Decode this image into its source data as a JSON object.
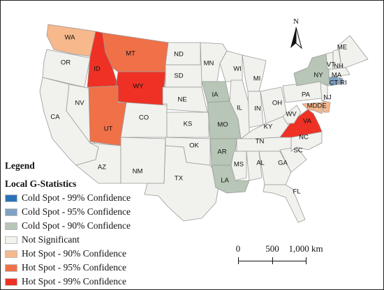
{
  "legend": {
    "title": "Legend",
    "subtitle": "Local G-Statistics",
    "items": [
      {
        "key": "cold99",
        "label": "Cold Spot - 99% Confidence",
        "color": "#2b73b8"
      },
      {
        "key": "cold95",
        "label": "Cold Spot - 95% Confidence",
        "color": "#7ea1c4"
      },
      {
        "key": "cold90",
        "label": "Cold Spot - 90% Confidence",
        "color": "#b7c6b6"
      },
      {
        "key": "ns",
        "label": "Not Significant",
        "color": "#f1f2ed"
      },
      {
        "key": "hot90",
        "label": "Hot Spot - 90% Confidence",
        "color": "#f7b88c"
      },
      {
        "key": "hot95",
        "label": "Hot Spot - 95% Confidence",
        "color": "#f07048"
      },
      {
        "key": "hot99",
        "label": "Hot Spot - 99% Confidence",
        "color": "#ee3124"
      }
    ]
  },
  "scale_bar": {
    "labels": [
      "0",
      "500",
      "1,000 km"
    ]
  },
  "north_arrow": {
    "letter": "N",
    "icon": "north-arrow-icon"
  },
  "states": [
    {
      "abbr": "WA",
      "class": "hot90"
    },
    {
      "abbr": "OR",
      "class": "ns"
    },
    {
      "abbr": "CA",
      "class": "ns"
    },
    {
      "abbr": "NV",
      "class": "ns"
    },
    {
      "abbr": "ID",
      "class": "hot99"
    },
    {
      "abbr": "MT",
      "class": "hot95"
    },
    {
      "abbr": "WY",
      "class": "hot99"
    },
    {
      "abbr": "UT",
      "class": "hot95"
    },
    {
      "abbr": "AZ",
      "class": "ns"
    },
    {
      "abbr": "CO",
      "class": "ns"
    },
    {
      "abbr": "NM",
      "class": "ns"
    },
    {
      "abbr": "ND",
      "class": "ns"
    },
    {
      "abbr": "SD",
      "class": "ns"
    },
    {
      "abbr": "NE",
      "class": "ns"
    },
    {
      "abbr": "KS",
      "class": "ns"
    },
    {
      "abbr": "OK",
      "class": "ns"
    },
    {
      "abbr": "TX",
      "class": "ns"
    },
    {
      "abbr": "MN",
      "class": "ns"
    },
    {
      "abbr": "IA",
      "class": "cold90"
    },
    {
      "abbr": "MO",
      "class": "cold90"
    },
    {
      "abbr": "AR",
      "class": "cold90"
    },
    {
      "abbr": "LA",
      "class": "cold90"
    },
    {
      "abbr": "WI",
      "class": "ns"
    },
    {
      "abbr": "IL",
      "class": "ns"
    },
    {
      "abbr": "MI",
      "class": "ns"
    },
    {
      "abbr": "IN",
      "class": "ns"
    },
    {
      "abbr": "OH",
      "class": "ns"
    },
    {
      "abbr": "KY",
      "class": "ns"
    },
    {
      "abbr": "TN",
      "class": "ns"
    },
    {
      "abbr": "MS",
      "class": "ns"
    },
    {
      "abbr": "AL",
      "class": "ns"
    },
    {
      "abbr": "GA",
      "class": "ns"
    },
    {
      "abbr": "FL",
      "class": "ns"
    },
    {
      "abbr": "SC",
      "class": "ns"
    },
    {
      "abbr": "NC",
      "class": "ns"
    },
    {
      "abbr": "VA",
      "class": "hot99"
    },
    {
      "abbr": "WV",
      "class": "ns"
    },
    {
      "abbr": "MD",
      "class": "hot90"
    },
    {
      "abbr": "DE",
      "class": "hot90"
    },
    {
      "abbr": "PA",
      "class": "ns"
    },
    {
      "abbr": "NJ",
      "class": "ns"
    },
    {
      "abbr": "NY",
      "class": "cold90"
    },
    {
      "abbr": "CT",
      "class": "cold95"
    },
    {
      "abbr": "RI",
      "class": "cold95"
    },
    {
      "abbr": "MA",
      "class": "ns"
    },
    {
      "abbr": "VT",
      "class": "ns"
    },
    {
      "abbr": "NH",
      "class": "ns"
    },
    {
      "abbr": "ME",
      "class": "ns"
    }
  ]
}
